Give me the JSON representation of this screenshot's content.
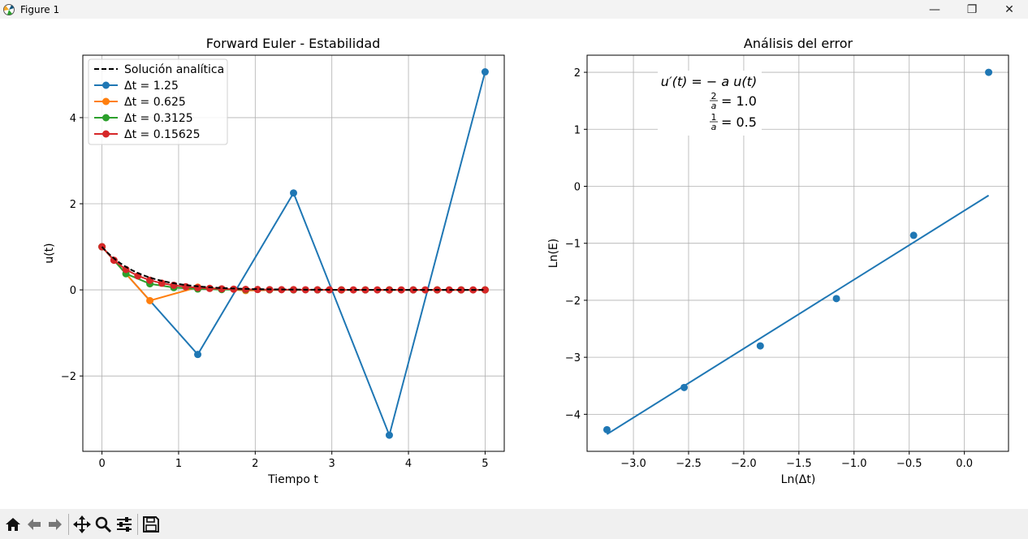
{
  "window": {
    "title": "Figure 1",
    "minimize_glyph": "—",
    "maximize_glyph": "❐",
    "close_glyph": "✕"
  },
  "toolbar": {
    "tools": [
      {
        "name": "home-icon"
      },
      {
        "name": "back-icon"
      },
      {
        "name": "forward-icon"
      },
      {
        "name": "pan-icon"
      },
      {
        "name": "zoom-icon"
      },
      {
        "name": "configure-subplots-icon"
      },
      {
        "name": "save-icon"
      }
    ]
  },
  "colors": {
    "analytic": "#000000",
    "series": [
      "#1f77b4",
      "#ff7f0e",
      "#2ca02c",
      "#d62728"
    ],
    "grid": "#b0b0b0"
  },
  "chart_data": [
    {
      "type": "line",
      "title": "Forward Euler - Estabilidad",
      "xlabel": "Tiempo t",
      "ylabel": "u(t)",
      "xlim": [
        -0.25,
        5.25
      ],
      "ylim": [
        -3.75,
        5.45
      ],
      "xticks": [
        0,
        1,
        2,
        3,
        4,
        5
      ],
      "xtick_labels": [
        "0",
        "1",
        "2",
        "3",
        "4",
        "5"
      ],
      "yticks": [
        -2,
        0,
        2,
        4
      ],
      "ytick_labels": [
        "−2",
        "0",
        "2",
        "4"
      ],
      "grid": true,
      "legend_position": "upper-left",
      "analytic": {
        "name": "Solución analítica",
        "a": 2.0,
        "t_max": 5,
        "style": "dashed"
      },
      "series": [
        {
          "name": "Δt = 1.25",
          "dt": 1.25,
          "x": [
            0,
            1.25,
            2.5,
            3.75,
            5
          ],
          "y": [
            1,
            -1.5,
            2.25,
            -3.375,
            5.0625
          ]
        },
        {
          "name": "Δt = 0.625",
          "dt": 0.625,
          "x": [
            0,
            0.625,
            1.25,
            1.875,
            2.5,
            3.125,
            3.75,
            4.375,
            5
          ],
          "y": [
            1,
            -0.25,
            0.0625,
            -0.016,
            0.004,
            -0.001,
            0.0,
            0.0,
            0.0
          ]
        },
        {
          "name": "Δt = 0.3125",
          "dt": 0.3125,
          "x": [
            0,
            0.3125,
            0.625,
            0.9375,
            1.25,
            1.5625,
            1.875,
            2.1875,
            2.5,
            2.8125,
            3.125,
            3.4375,
            3.75,
            4.0625,
            4.375,
            4.6875,
            5
          ],
          "y": [
            1,
            0.375,
            0.141,
            0.053,
            0.02,
            0.007,
            0.003,
            0.001,
            0.0,
            0.0,
            0.0,
            0.0,
            0.0,
            0.0,
            0.0,
            0.0,
            0.0
          ]
        },
        {
          "name": "Δt = 0.15625",
          "dt": 0.15625,
          "x": [
            0,
            0.15625,
            0.3125,
            0.46875,
            0.625,
            0.78125,
            0.9375,
            1.09375,
            1.25,
            1.40625,
            1.5625,
            1.71875,
            1.875,
            2.03125,
            2.1875,
            2.34375,
            2.5,
            2.65625,
            2.8125,
            2.96875,
            3.125,
            3.28125,
            3.4375,
            3.59375,
            3.75,
            3.90625,
            4.0625,
            4.21875,
            4.375,
            4.53125,
            4.6875,
            4.84375,
            5
          ],
          "y": [
            1,
            0.688,
            0.473,
            0.325,
            0.224,
            0.154,
            0.106,
            0.073,
            0.05,
            0.034,
            0.024,
            0.016,
            0.011,
            0.008,
            0.005,
            0.004,
            0.003,
            0.002,
            0.001,
            0.001,
            0.0,
            0.0,
            0.0,
            0.0,
            0.0,
            0.0,
            0.0,
            0.0,
            0.0,
            0.0,
            0.0,
            0.0,
            0.0
          ]
        }
      ]
    },
    {
      "type": "scatter",
      "title": "Análisis del error",
      "xlabel": "Ln(Δt)",
      "ylabel": "Ln(E)",
      "xlim": [
        -3.42,
        0.4
      ],
      "ylim": [
        -4.65,
        2.3
      ],
      "xticks": [
        -3.0,
        -2.5,
        -2.0,
        -1.5,
        -1.0,
        -0.5,
        0.0
      ],
      "xtick_labels": [
        "−3.0",
        "−2.5",
        "−2.0",
        "−1.5",
        "−1.0",
        "−0.5",
        "0.0"
      ],
      "yticks": [
        -4,
        -3,
        -2,
        -1,
        0,
        1,
        2
      ],
      "ytick_labels": [
        "−4",
        "−3",
        "−2",
        "−1",
        "0",
        "1",
        "2"
      ],
      "grid": true,
      "points": {
        "x": [
          -3.24,
          -2.54,
          -1.85,
          -1.16,
          -0.46,
          0.22
        ],
        "y": [
          -4.27,
          -3.53,
          -2.8,
          -1.97,
          -0.86,
          2.0
        ]
      },
      "fit_line": {
        "x": [
          -3.24,
          0.22
        ],
        "y": [
          -4.35,
          -0.16
        ]
      },
      "annotation": {
        "line1": "u′(t) = − a u(t)",
        "frac1_num": "2",
        "frac1_den": "a",
        "eq1": "= 1.0",
        "frac2_num": "1",
        "frac2_den": "a",
        "eq2": "= 0.5"
      }
    }
  ]
}
